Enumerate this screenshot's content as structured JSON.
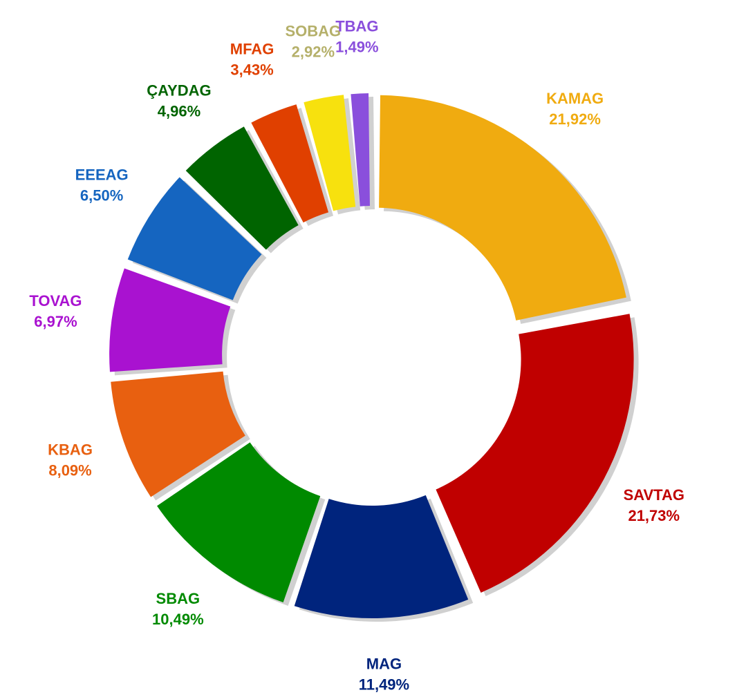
{
  "chart_data": {
    "type": "donut",
    "categories": [
      "KAMAG",
      "SAVTAG",
      "MAG",
      "SBAG",
      "KBAG",
      "TOVAG",
      "EEEAG",
      "ÇAYDAG",
      "MFAG",
      "SOBAG",
      "TBAG"
    ],
    "values": [
      21.92,
      21.73,
      11.49,
      10.49,
      8.09,
      6.97,
      6.5,
      4.96,
      3.43,
      2.92,
      1.49
    ],
    "value_labels": [
      "21,92%",
      "21,73%",
      "11,49%",
      "10,49%",
      "8,09%",
      "6,97%",
      "6,50%",
      "4,96%",
      "3,43%",
      "2,92%",
      "1,49%"
    ],
    "colors": [
      "#f0ab10",
      "#c00000",
      "#00247d",
      "#008a00",
      "#e86010",
      "#a912d0",
      "#1565c0",
      "#006400",
      "#e04000",
      "#f7e10e",
      "#8a4fdc"
    ],
    "label_colors": [
      "#f0ab10",
      "#c00000",
      "#00247d",
      "#008a00",
      "#e86010",
      "#a912d0",
      "#1565c0",
      "#006400",
      "#e04000",
      "#b5b06a",
      "#8a4fdc"
    ]
  }
}
